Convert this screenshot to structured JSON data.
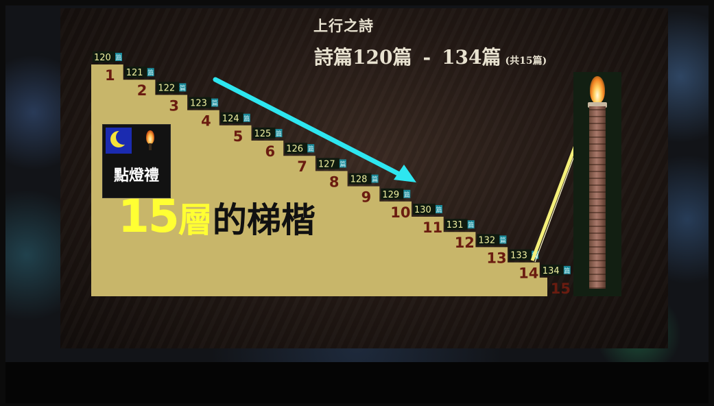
{
  "slide": {
    "title_small": "上行之詩",
    "title_big_left": "詩篇120篇",
    "title_big_dash": "-",
    "title_big_right": "134篇",
    "title_big_note": "(共15篇)"
  },
  "steps": [
    {
      "number": "1",
      "psalm": "120",
      "unit": "篇"
    },
    {
      "number": "2",
      "psalm": "121",
      "unit": "篇"
    },
    {
      "number": "3",
      "psalm": "122",
      "unit": "篇"
    },
    {
      "number": "4",
      "psalm": "123",
      "unit": "篇"
    },
    {
      "number": "5",
      "psalm": "124",
      "unit": "篇"
    },
    {
      "number": "6",
      "psalm": "125",
      "unit": "篇"
    },
    {
      "number": "7",
      "psalm": "126",
      "unit": "篇"
    },
    {
      "number": "8",
      "psalm": "127",
      "unit": "篇"
    },
    {
      "number": "9",
      "psalm": "128",
      "unit": "篇"
    },
    {
      "number": "10",
      "psalm": "129",
      "unit": "篇"
    },
    {
      "number": "11",
      "psalm": "130",
      "unit": "篇"
    },
    {
      "number": "12",
      "psalm": "131",
      "unit": "篇"
    },
    {
      "number": "13",
      "psalm": "132",
      "unit": "篇"
    },
    {
      "number": "14",
      "psalm": "133",
      "unit": "篇"
    },
    {
      "number": "15",
      "psalm": "134",
      "unit": "篇"
    }
  ],
  "lamp_box": {
    "label": "點燈禮",
    "moon_icon": "crescent-moon-icon",
    "flame_icon": "candle-flame-icon"
  },
  "headline": {
    "number": "15",
    "char_highlight": "層",
    "rest": "的梯楷"
  },
  "colors": {
    "staircase": "#c8b66a",
    "step_number": "#6a1c10",
    "psalm_label_bg": "#0f1a0f",
    "psalm_label_text": "#f0f0a0",
    "psalm_unit_bg": "#1a8a9a",
    "arrow_cyan": "#2ee6f0",
    "pointer_yellow": "#f5f07a",
    "headline_yellow": "#ffff33"
  }
}
